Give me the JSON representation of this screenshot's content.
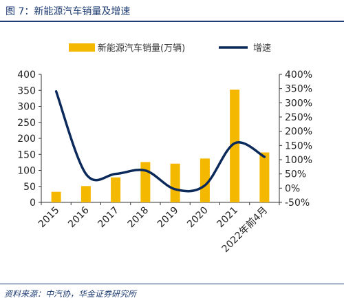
{
  "figure_title": "图 7：新能源汽车销量及增速",
  "source_note": "资料来源：中汽协，华金证券研究所",
  "colors": {
    "bar": "#f5b800",
    "line": "#0b2a5b",
    "text": "#1f3d73",
    "axis": "#333333"
  },
  "chart_data": {
    "type": "bar",
    "categories": [
      "2015",
      "2016",
      "2017",
      "2018",
      "2019",
      "2020",
      "2021",
      "2022年前4月"
    ],
    "series": [
      {
        "name": "新能源汽车销量(万辆)",
        "type": "bar",
        "axis": "left",
        "values": [
          33,
          51,
          78,
          126,
          121,
          137,
          352,
          156
        ]
      },
      {
        "name": "增速",
        "type": "line",
        "axis": "right",
        "smooth": true,
        "values": [
          340,
          50,
          50,
          62,
          -4,
          10,
          158,
          110
        ]
      }
    ],
    "y_left": {
      "ylim": [
        0,
        400
      ],
      "ticks": [
        "0",
        "50",
        "100",
        "150",
        "200",
        "250",
        "300",
        "350",
        "400"
      ]
    },
    "y_right": {
      "ylim": [
        -50,
        400
      ],
      "ticks": [
        "-50%",
        "0%",
        "50%",
        "100%",
        "150%",
        "200%",
        "250%",
        "300%",
        "350%",
        "400%"
      ]
    },
    "legend_position": "top",
    "grid": false
  }
}
